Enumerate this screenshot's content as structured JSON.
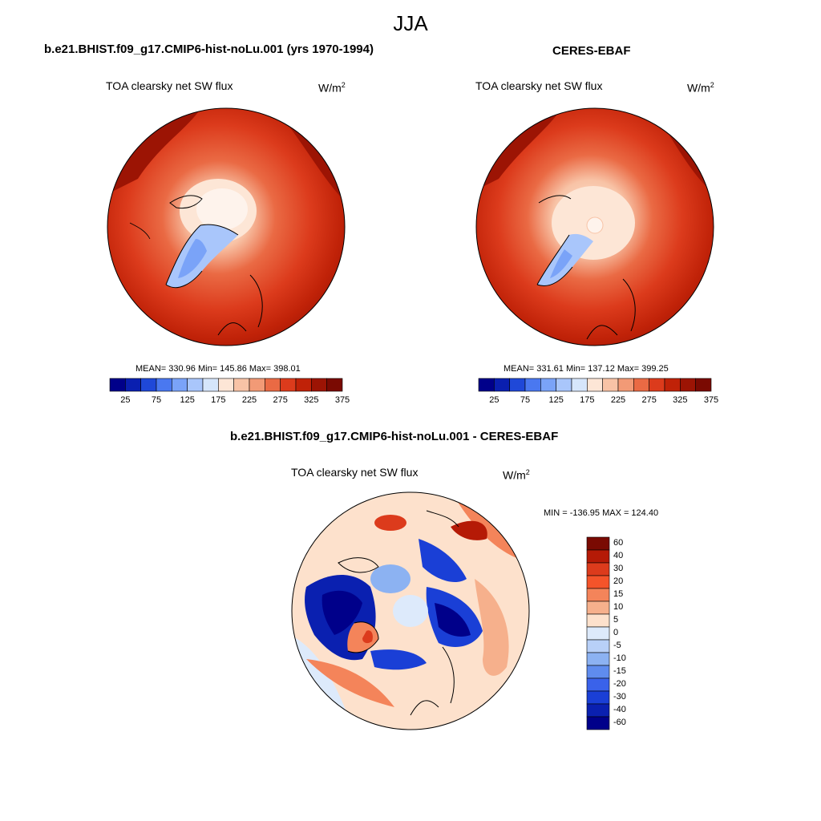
{
  "season": "JJA",
  "units_base": "W/m",
  "units_exp": "2",
  "panels": {
    "model": {
      "title": "b.e21.BHIST.f09_g17.CMIP6-hist-noLu.001 (yrs 1970-1994)",
      "variable": "TOA clearsky net SW flux",
      "stats": "MEAN= 330.96  Min= 145.86  Max= 398.01"
    },
    "obs": {
      "title": "CERES-EBAF",
      "variable": "TOA clearsky net SW flux",
      "stats": "MEAN= 331.61  Min= 137.12  Max= 399.25"
    },
    "diff": {
      "title": "b.e21.BHIST.f09_g17.CMIP6-hist-noLu.001 - CERES-EBAF",
      "variable": "TOA clearsky net SW flux",
      "stats": "MIN = -136.95 MAX = 124.40"
    }
  },
  "abs_colorbar": {
    "colors": [
      "#00008a",
      "#0a1fb0",
      "#1f48d8",
      "#4a78f0",
      "#7aa3f8",
      "#a9c6fb",
      "#d6e6fb",
      "#fde6d6",
      "#f8c3a6",
      "#f29a76",
      "#ea6a44",
      "#dc3b1c",
      "#c02208",
      "#9c1404",
      "#7a0a02"
    ],
    "ticks": [
      "25",
      "75",
      "125",
      "175",
      "225",
      "275",
      "325",
      "375"
    ]
  },
  "diff_colorbar": {
    "colors": [
      "#7a0a02",
      "#b51a06",
      "#dc3b1c",
      "#f4542a",
      "#f4845a",
      "#f6b08c",
      "#fde1cc",
      "#ddeafb",
      "#b8d0f8",
      "#8cb2f2",
      "#5f8cee",
      "#3a62ea",
      "#1a3fd6",
      "#0a20b0",
      "#00008a"
    ],
    "labels": [
      "60",
      "40",
      "30",
      "20",
      "15",
      "10",
      "5",
      "0",
      "-5",
      "-10",
      "-15",
      "-20",
      "-30",
      "-40",
      "-60"
    ]
  }
}
